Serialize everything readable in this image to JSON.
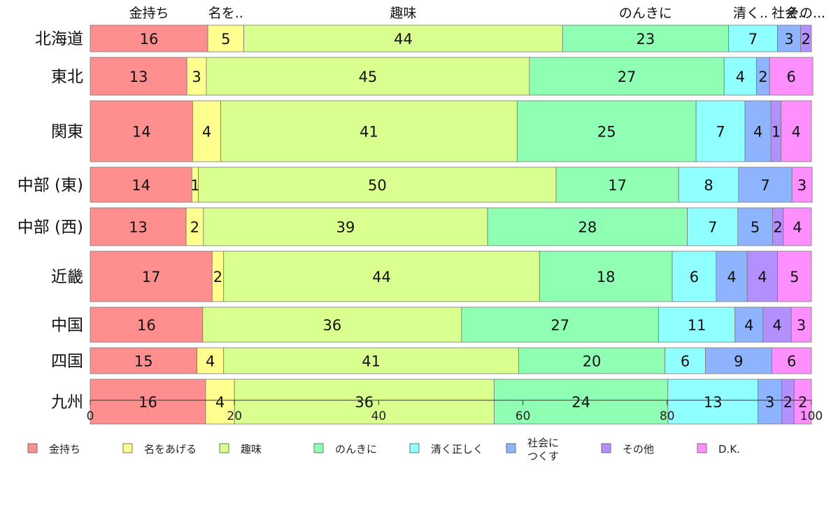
{
  "chart_data": {
    "type": "bar",
    "orientation": "horizontal",
    "stacked": true,
    "normalized": true,
    "xlim": [
      0,
      100
    ],
    "x_ticks": [
      "0",
      "20",
      "40",
      "60",
      "80",
      "100"
    ],
    "top_labels": [
      "金持ち",
      "名を..",
      "趣味",
      "のんきに",
      "清く..",
      "社会..",
      "その..."
    ],
    "categories": [
      "金持ち",
      "名をあげる",
      "趣味",
      "のんきに",
      "清く正しく",
      "社会に\nつくす",
      "その他",
      "D.K."
    ],
    "colors": [
      "#FF8F8F",
      "#FFFF8F",
      "#D9FF8F",
      "#8FFFB4",
      "#8FFFFF",
      "#8FB4FF",
      "#B48FFF",
      "#FF8FFF"
    ],
    "regions": [
      {
        "name": "北海道",
        "values": [
          16.3,
          5.0,
          44.2,
          23.0,
          6.8,
          3.2,
          1.5,
          0.0
        ],
        "labels": [
          "16",
          "5",
          "44",
          "23",
          "7",
          "3",
          "2",
          ""
        ]
      },
      {
        "name": "東北",
        "values": [
          13.4,
          2.7,
          44.8,
          27.0,
          4.5,
          1.8,
          0.0,
          6.0
        ],
        "labels": [
          "13",
          "3",
          "45",
          "27",
          "4",
          "2",
          "",
          "6"
        ]
      },
      {
        "name": "関東",
        "values": [
          14.2,
          3.9,
          41.1,
          24.8,
          6.8,
          3.6,
          1.4,
          4.2
        ],
        "labels": [
          "14",
          "4",
          "41",
          "25",
          "7",
          "4",
          "1",
          "4"
        ]
      },
      {
        "name": "中部 (東)",
        "values": [
          14.1,
          0.9,
          49.6,
          17.0,
          8.3,
          7.4,
          0.0,
          2.8
        ],
        "labels": [
          "14",
          "1",
          "50",
          "17",
          "8",
          "7",
          "",
          "3"
        ]
      },
      {
        "name": "中部 (西)",
        "values": [
          13.3,
          2.4,
          39.4,
          27.7,
          7.0,
          4.8,
          1.5,
          3.9
        ],
        "labels": [
          "13",
          "2",
          "39",
          "28",
          "7",
          "5",
          "2",
          "4"
        ]
      },
      {
        "name": "近畿",
        "values": [
          16.9,
          1.6,
          43.8,
          18.4,
          6.1,
          4.3,
          4.2,
          4.7
        ],
        "labels": [
          "17",
          "2",
          "44",
          "18",
          "6",
          "4",
          "4",
          "5"
        ]
      },
      {
        "name": "中国",
        "values": [
          15.6,
          0.0,
          35.9,
          27.3,
          10.6,
          3.9,
          3.9,
          2.8
        ],
        "labels": [
          "16",
          "",
          "36",
          "27",
          "11",
          "4",
          "4",
          "3"
        ]
      },
      {
        "name": "四国",
        "values": [
          14.8,
          3.7,
          40.9,
          20.3,
          5.6,
          9.2,
          0.0,
          5.5
        ],
        "labels": [
          "15",
          "4",
          "41",
          "20",
          "6",
          "9",
          "",
          "6"
        ]
      },
      {
        "name": "九州",
        "values": [
          16.0,
          4.0,
          36.0,
          24.1,
          12.5,
          3.3,
          1.7,
          2.4
        ],
        "labels": [
          "16",
          "4",
          "36",
          "24",
          "13",
          "3",
          "2",
          "2"
        ]
      }
    ],
    "row_weights": [
      38,
      54,
      87,
      50,
      54,
      72,
      50,
      37,
      64
    ]
  }
}
